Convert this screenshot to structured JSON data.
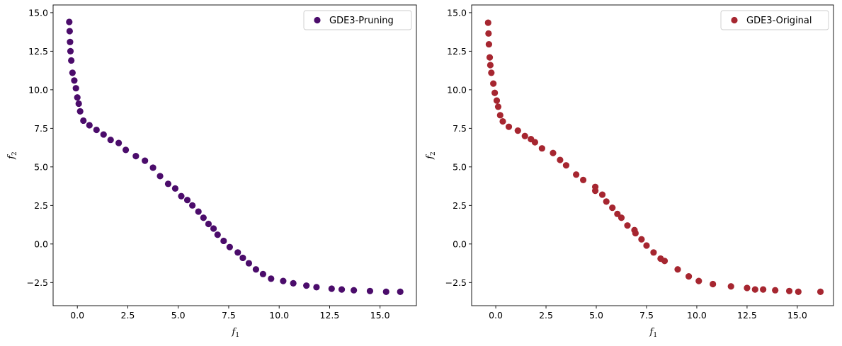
{
  "colors": {
    "pruning": "#4b0c6b",
    "original": "#a62630"
  },
  "chart_data": [
    {
      "type": "scatter",
      "xlabel": "f",
      "xlabel_sub": "1",
      "ylabel": "f",
      "ylabel_sub": "2",
      "xlim": [
        -1.2,
        16.8
      ],
      "ylim": [
        -4.0,
        15.5
      ],
      "xticks": [
        "0.0",
        "2.5",
        "5.0",
        "7.5",
        "10.0",
        "12.5",
        "15.0"
      ],
      "xtick_values": [
        0,
        2.5,
        5,
        7.5,
        10,
        12.5,
        15
      ],
      "yticks": [
        "−2.5",
        "0.0",
        "2.5",
        "5.0",
        "7.5",
        "10.0",
        "12.5",
        "15.0"
      ],
      "ytick_values": [
        -2.5,
        0,
        2.5,
        5,
        7.5,
        10,
        12.5,
        15
      ],
      "legend": "top-right",
      "series": [
        {
          "name": "GDE3-Pruning",
          "points": [
            [
              -0.4,
              14.4
            ],
            [
              -0.38,
              13.8
            ],
            [
              -0.36,
              13.1
            ],
            [
              -0.34,
              12.5
            ],
            [
              -0.3,
              11.9
            ],
            [
              -0.24,
              11.1
            ],
            [
              -0.15,
              10.6
            ],
            [
              -0.07,
              10.1
            ],
            [
              0.0,
              9.5
            ],
            [
              0.07,
              9.1
            ],
            [
              0.14,
              8.6
            ],
            [
              0.3,
              8.0
            ],
            [
              0.6,
              7.7
            ],
            [
              0.95,
              7.4
            ],
            [
              1.3,
              7.1
            ],
            [
              1.65,
              6.75
            ],
            [
              2.05,
              6.55
            ],
            [
              2.4,
              6.1
            ],
            [
              2.9,
              5.7
            ],
            [
              3.35,
              5.4
            ],
            [
              3.75,
              4.95
            ],
            [
              4.1,
              4.4
            ],
            [
              4.5,
              3.9
            ],
            [
              4.85,
              3.6
            ],
            [
              5.15,
              3.1
            ],
            [
              5.45,
              2.85
            ],
            [
              5.7,
              2.5
            ],
            [
              6.0,
              2.1
            ],
            [
              6.25,
              1.7
            ],
            [
              6.5,
              1.3
            ],
            [
              6.75,
              1.0
            ],
            [
              6.95,
              0.6
            ],
            [
              7.25,
              0.2
            ],
            [
              7.55,
              -0.2
            ],
            [
              7.95,
              -0.55
            ],
            [
              8.2,
              -0.9
            ],
            [
              8.5,
              -1.25
            ],
            [
              8.85,
              -1.65
            ],
            [
              9.2,
              -1.95
            ],
            [
              9.6,
              -2.25
            ],
            [
              10.2,
              -2.4
            ],
            [
              10.7,
              -2.55
            ],
            [
              11.35,
              -2.7
            ],
            [
              11.85,
              -2.8
            ],
            [
              12.6,
              -2.9
            ],
            [
              13.1,
              -2.95
            ],
            [
              13.7,
              -3.0
            ],
            [
              14.5,
              -3.05
            ],
            [
              15.3,
              -3.1
            ],
            [
              16.0,
              -3.1
            ]
          ]
        },
        {
          "name": "GDE3-Original",
          "points": [
            [
              -0.38,
              14.35
            ],
            [
              -0.36,
              13.65
            ],
            [
              -0.34,
              12.95
            ],
            [
              -0.3,
              12.1
            ],
            [
              -0.27,
              11.6
            ],
            [
              -0.22,
              11.1
            ],
            [
              -0.12,
              10.4
            ],
            [
              -0.05,
              9.8
            ],
            [
              0.05,
              9.3
            ],
            [
              0.12,
              8.9
            ],
            [
              0.22,
              8.35
            ],
            [
              0.35,
              7.95
            ],
            [
              0.65,
              7.6
            ],
            [
              1.1,
              7.35
            ],
            [
              1.45,
              7.0
            ],
            [
              1.75,
              6.8
            ],
            [
              1.95,
              6.6
            ],
            [
              2.3,
              6.2
            ],
            [
              2.85,
              5.9
            ],
            [
              3.2,
              5.45
            ],
            [
              3.5,
              5.1
            ],
            [
              4.0,
              4.5
            ],
            [
              4.35,
              4.15
            ],
            [
              4.95,
              3.7
            ],
            [
              4.95,
              3.45
            ],
            [
              5.3,
              3.2
            ],
            [
              5.5,
              2.75
            ],
            [
              5.8,
              2.35
            ],
            [
              6.05,
              1.95
            ],
            [
              6.25,
              1.7
            ],
            [
              6.55,
              1.2
            ],
            [
              6.9,
              0.9
            ],
            [
              6.95,
              0.7
            ],
            [
              7.25,
              0.3
            ],
            [
              7.5,
              -0.1
            ],
            [
              7.85,
              -0.55
            ],
            [
              8.2,
              -0.95
            ],
            [
              8.4,
              -1.1
            ],
            [
              9.05,
              -1.65
            ],
            [
              9.6,
              -2.1
            ],
            [
              10.1,
              -2.4
            ],
            [
              10.8,
              -2.6
            ],
            [
              11.7,
              -2.75
            ],
            [
              12.5,
              -2.85
            ],
            [
              12.9,
              -2.95
            ],
            [
              13.3,
              -2.95
            ],
            [
              13.9,
              -3.0
            ],
            [
              14.6,
              -3.05
            ],
            [
              15.05,
              -3.1
            ],
            [
              16.15,
              -3.1
            ]
          ]
        }
      ]
    }
  ]
}
